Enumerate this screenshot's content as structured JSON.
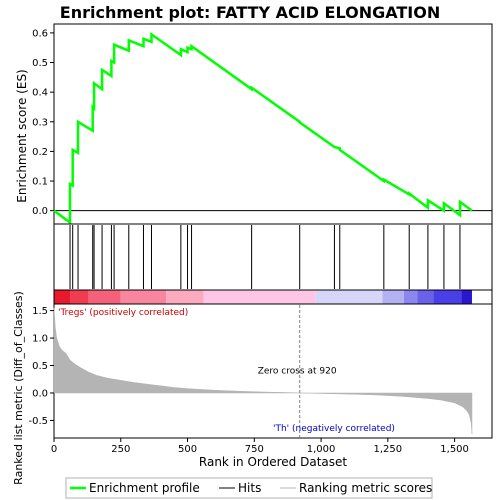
{
  "chart_data": {
    "type": "line",
    "title": "Enrichment plot: FATTY ACID ELONGATION",
    "top_panel": {
      "ylabel": "Enrichment score (ES)",
      "ylim": [
        -0.045,
        0.63
      ],
      "yticks": [
        0.0,
        0.1,
        0.2,
        0.3,
        0.4,
        0.5,
        0.6
      ],
      "ytick_labels": [
        "0.0",
        "0.1",
        "0.2",
        "0.3",
        "0.4",
        "0.5",
        "0.6"
      ],
      "series": [
        {
          "name": "Enrichment profile",
          "color": "#00ff00",
          "x": [
            0,
            60,
            60,
            70,
            70,
            90,
            90,
            145,
            145,
            150,
            150,
            180,
            180,
            215,
            215,
            225,
            225,
            280,
            280,
            335,
            335,
            365,
            365,
            475,
            475,
            500,
            500,
            515,
            515,
            740,
            740,
            920,
            920,
            1050,
            1050,
            1070,
            1070,
            1235,
            1235,
            1330,
            1330,
            1400,
            1400,
            1460,
            1460,
            1520,
            1520,
            1565
          ],
          "y": [
            0.0,
            -0.04,
            0.09,
            0.085,
            0.205,
            0.195,
            0.3,
            0.27,
            0.35,
            0.345,
            0.43,
            0.41,
            0.475,
            0.455,
            0.505,
            0.5,
            0.56,
            0.54,
            0.575,
            0.555,
            0.58,
            0.57,
            0.595,
            0.525,
            0.545,
            0.535,
            0.55,
            0.545,
            0.555,
            0.41,
            0.415,
            0.3,
            0.298,
            0.215,
            0.215,
            0.21,
            0.205,
            0.1,
            0.105,
            0.055,
            0.058,
            0.01,
            0.035,
            0.0,
            0.025,
            -0.015,
            0.03,
            0.0
          ]
        }
      ]
    },
    "hits": {
      "name": "Hits",
      "x": [
        60,
        70,
        90,
        145,
        150,
        180,
        215,
        225,
        280,
        335,
        365,
        475,
        500,
        515,
        740,
        920,
        1050,
        1070,
        1235,
        1330,
        1400,
        1460,
        1520
      ]
    },
    "colorbar": {
      "stops": [
        {
          "from": 0,
          "to": 60,
          "color": "#e8192c"
        },
        {
          "from": 60,
          "to": 130,
          "color": "#f03c50"
        },
        {
          "from": 130,
          "to": 250,
          "color": "#f5607a"
        },
        {
          "from": 250,
          "to": 420,
          "color": "#f8869e"
        },
        {
          "from": 420,
          "to": 560,
          "color": "#fbaac0"
        },
        {
          "from": 560,
          "to": 980,
          "color": "#fdc6e4"
        },
        {
          "from": 980,
          "to": 1230,
          "color": "#d8d6f8"
        },
        {
          "from": 1230,
          "to": 1310,
          "color": "#b4b0f4"
        },
        {
          "from": 1310,
          "to": 1360,
          "color": "#8c86f0"
        },
        {
          "from": 1360,
          "to": 1420,
          "color": "#6a60ea"
        },
        {
          "from": 1420,
          "to": 1525,
          "color": "#4a3ee6"
        },
        {
          "from": 1525,
          "to": 1565,
          "color": "#2a16cc"
        }
      ]
    },
    "bottom_panel": {
      "name": "Ranking metric scores",
      "xlabel": "Rank in Ordered Dataset",
      "ylabel": "Ranked list metric (Diff_of_Classes)",
      "xlim": [
        0,
        1640
      ],
      "xticks": [
        0,
        250,
        500,
        750,
        1000,
        1250,
        1500
      ],
      "xtick_labels": [
        "0",
        "250",
        "500",
        "750",
        "1,000",
        "1,250",
        "1,500"
      ],
      "ylim": [
        -0.82,
        1.62
      ],
      "yticks": [
        -0.5,
        0.0,
        0.5,
        1.0,
        1.5
      ],
      "ytick_labels": [
        "-0.5",
        "0.0",
        "0.5",
        "1.0",
        "1.5"
      ],
      "x": [
        0,
        5,
        10,
        20,
        30,
        45,
        60,
        80,
        100,
        130,
        160,
        200,
        250,
        300,
        350,
        400,
        450,
        500,
        600,
        700,
        800,
        900,
        920,
        1000,
        1100,
        1200,
        1300,
        1400,
        1450,
        1500,
        1530,
        1545,
        1555,
        1562,
        1565
      ],
      "y": [
        1.55,
        1.2,
        1.0,
        0.85,
        0.78,
        0.72,
        0.6,
        0.52,
        0.46,
        0.38,
        0.32,
        0.27,
        0.23,
        0.19,
        0.16,
        0.13,
        0.1,
        0.08,
        0.05,
        0.03,
        0.015,
        0.005,
        0.0,
        -0.01,
        -0.02,
        -0.035,
        -0.06,
        -0.1,
        -0.13,
        -0.18,
        -0.25,
        -0.32,
        -0.4,
        -0.55,
        -0.75
      ],
      "color": "#b4b4b4",
      "zero_cross_label": "Zero cross at 920",
      "zero_cross_x": 920,
      "positive_label": "'Tregs' (positively correlated)",
      "negative_label": "'Th' (negatively correlated)",
      "positive_color": "#cc0000",
      "negative_color": "#0000cc"
    },
    "legend": {
      "entries": [
        {
          "label": "Enrichment profile",
          "color": "#00ff00"
        },
        {
          "label": "Hits",
          "color": "#000000"
        },
        {
          "label": "Ranking metric scores",
          "color": "#b4b4b4"
        }
      ],
      "position": "bottom"
    },
    "grid": false
  }
}
